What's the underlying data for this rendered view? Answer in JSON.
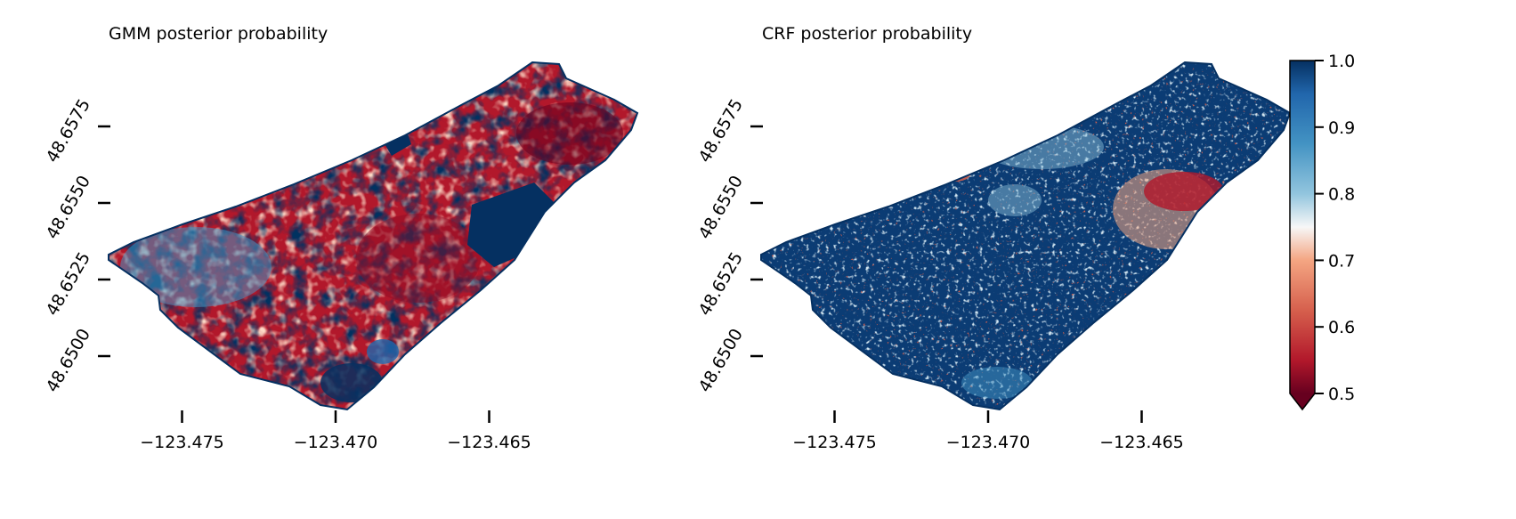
{
  "chart_data": [
    {
      "type": "heatmap",
      "title": "GMM posterior probability",
      "xlabel": "",
      "ylabel": "",
      "xlim": [
        -123.479,
        -123.4615
      ],
      "ylim": [
        48.6472,
        48.6605
      ],
      "x_ticks": [
        -123.475,
        -123.47,
        -123.465
      ],
      "x_tick_labels": [
        "−123.475",
        "−123.470",
        "−123.465"
      ],
      "y_ticks": [
        48.65,
        48.6525,
        48.655,
        48.6575
      ],
      "y_tick_labels": [
        "48.6500",
        "48.6525",
        "48.6550",
        "48.6575"
      ],
      "grid": false,
      "value_summary": "mixed; large low-probability (red) regions in the center and east, high-probability (blue) patches in the west, south and along the eastern edge"
    },
    {
      "type": "heatmap",
      "title": "CRF posterior probability",
      "xlabel": "",
      "ylabel": "",
      "xlim": [
        -123.479,
        -123.4615
      ],
      "ylim": [
        48.6472,
        48.6605
      ],
      "x_ticks": [
        -123.475,
        -123.47,
        -123.465
      ],
      "x_tick_labels": [
        "−123.475",
        "−123.470",
        "−123.465"
      ],
      "y_ticks": [
        48.65,
        48.6525,
        48.655,
        48.6575
      ],
      "y_tick_labels": [
        "48.6500",
        "48.6525",
        "48.6550",
        "48.6575"
      ],
      "grid": false,
      "value_summary": "mostly high probability (dark blue ~1.0) with a low-probability (red) cluster near the east side and small red patches in the north"
    }
  ],
  "colorbar": {
    "colormap": "RdBu",
    "vmin": 0.5,
    "vmax": 1.0,
    "extend": "min",
    "ticks": [
      0.5,
      0.6,
      0.7,
      0.8,
      0.9,
      1.0
    ],
    "tick_labels": [
      "0.5",
      "0.6",
      "0.7",
      "0.8",
      "0.9",
      "1.0"
    ],
    "colors": {
      "low": "#67001f",
      "mid": "#f7f7f7",
      "high": "#053061"
    }
  }
}
